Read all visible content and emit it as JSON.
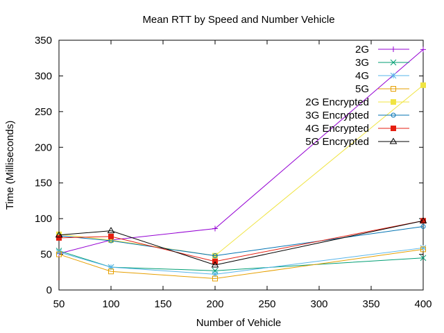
{
  "chart_data": {
    "type": "line",
    "title": "Mean RTT by Speed and Number Vehicle",
    "xlabel": "Number of Vehicle",
    "ylabel": "Time (Milliseconds)",
    "xlim": [
      50,
      400
    ],
    "ylim": [
      0,
      350
    ],
    "xticks": [
      50,
      100,
      150,
      200,
      250,
      300,
      350,
      400
    ],
    "yticks": [
      0,
      50,
      100,
      150,
      200,
      250,
      300,
      350
    ],
    "x": [
      50,
      100,
      200,
      400
    ],
    "grid": false,
    "legend_position": "top-right",
    "series": [
      {
        "name": "2G",
        "color": "#9400d3",
        "marker": "plus",
        "values": [
          51,
          70,
          86,
          337
        ]
      },
      {
        "name": "3G",
        "color": "#009e73",
        "marker": "cross",
        "values": [
          55,
          32,
          27,
          45
        ]
      },
      {
        "name": "4G",
        "color": "#56b4e9",
        "marker": "star",
        "values": [
          53,
          32,
          22,
          59
        ]
      },
      {
        "name": "5G",
        "color": "#e69f00",
        "marker": "square-open",
        "values": [
          50,
          26,
          16,
          57
        ]
      },
      {
        "name": "2G Encrypted",
        "color": "#f0e442",
        "marker": "square-filled",
        "values": [
          78,
          70,
          48,
          287
        ]
      },
      {
        "name": "3G Encrypted",
        "color": "#0072b2",
        "marker": "circle",
        "values": [
          76,
          69,
          48,
          89
        ]
      },
      {
        "name": "4G Encrypted",
        "color": "#e51e10",
        "marker": "square-filled",
        "values": [
          73,
          75,
          40,
          97
        ]
      },
      {
        "name": "5G Encrypted",
        "color": "#000000",
        "marker": "triangle-open",
        "values": [
          77,
          83,
          35,
          97
        ]
      }
    ]
  }
}
